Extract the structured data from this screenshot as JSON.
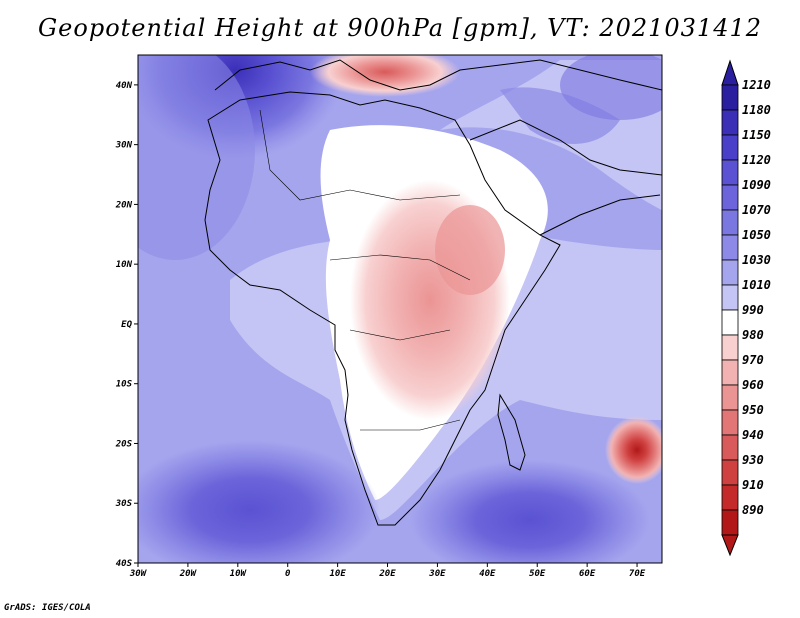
{
  "title": "Geopotential Height at 900hPa [gpm], VT: 2021031412",
  "credit": "GrADS: IGES/COLA",
  "map": {
    "lon_range": [
      -30,
      75
    ],
    "lat_range": [
      -40,
      45
    ],
    "lon_ticks": [
      {
        "value": -30,
        "label": "30W"
      },
      {
        "value": -20,
        "label": "20W"
      },
      {
        "value": -10,
        "label": "10W"
      },
      {
        "value": 0,
        "label": "0"
      },
      {
        "value": 10,
        "label": "10E"
      },
      {
        "value": 20,
        "label": "20E"
      },
      {
        "value": 30,
        "label": "30E"
      },
      {
        "value": 40,
        "label": "40E"
      },
      {
        "value": 50,
        "label": "50E"
      },
      {
        "value": 60,
        "label": "60E"
      },
      {
        "value": 70,
        "label": "70E"
      }
    ],
    "lat_ticks": [
      {
        "value": 40,
        "label": "40N"
      },
      {
        "value": 30,
        "label": "30N"
      },
      {
        "value": 20,
        "label": "20N"
      },
      {
        "value": 10,
        "label": "10N"
      },
      {
        "value": 0,
        "label": "EQ"
      },
      {
        "value": -10,
        "label": "10S"
      },
      {
        "value": -20,
        "label": "20S"
      },
      {
        "value": -30,
        "label": "30S"
      },
      {
        "value": -40,
        "label": "40S"
      }
    ]
  },
  "colorbar": {
    "levels": [
      "1210",
      "1180",
      "1150",
      "1120",
      "1090",
      "1070",
      "1050",
      "1030",
      "1010",
      "990",
      "980",
      "970",
      "960",
      "950",
      "940",
      "930",
      "910",
      "890"
    ],
    "colors": [
      "#2a1f9e",
      "#3b2fb8",
      "#4a3fc8",
      "#5a52d2",
      "#6b64da",
      "#7b77e0",
      "#8c8ae6",
      "#a5a5ee",
      "#c4c4f5",
      "#ffffff",
      "#f8d0d0",
      "#f2b2b2",
      "#eb9494",
      "#e27676",
      "#d95a5a",
      "#cf4040",
      "#c42a2a",
      "#b21818"
    ]
  }
}
